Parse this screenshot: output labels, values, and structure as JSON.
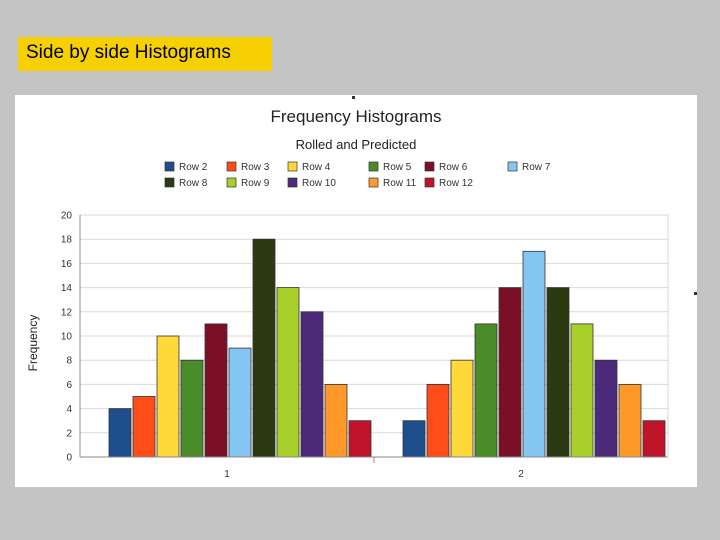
{
  "slide": {
    "title": "Side by side Histograms"
  },
  "chart_data": {
    "type": "bar",
    "title": "Frequency Histograms",
    "subtitle": "Rolled and Predicted",
    "xlabel": "",
    "ylabel": "Frequency",
    "ylim": [
      0,
      20
    ],
    "yticks": [
      "0",
      "2",
      "4",
      "6",
      "8",
      "10",
      "12",
      "14",
      "16",
      "18",
      "20"
    ],
    "grid": true,
    "legend_position": "top",
    "categories": [
      "1",
      "2"
    ],
    "series": [
      {
        "name": "Row 2",
        "color": "#1f4e8c",
        "values": [
          4,
          3
        ]
      },
      {
        "name": "Row 3",
        "color": "#ff4d1a",
        "values": [
          5,
          6
        ]
      },
      {
        "name": "Row 4",
        "color": "#ffd83a",
        "values": [
          10,
          8
        ]
      },
      {
        "name": "Row 5",
        "color": "#4a8c2a",
        "values": [
          8,
          11
        ]
      },
      {
        "name": "Row 6",
        "color": "#7a0f25",
        "values": [
          11,
          14
        ]
      },
      {
        "name": "Row 7",
        "color": "#86c6f2",
        "values": [
          9,
          17
        ]
      },
      {
        "name": "Row 8",
        "color": "#2c3a12",
        "values": [
          18,
          14
        ]
      },
      {
        "name": "Row 9",
        "color": "#a8cf2a",
        "values": [
          14,
          11
        ]
      },
      {
        "name": "Row 10",
        "color": "#4b2a7a",
        "values": [
          12,
          8
        ]
      },
      {
        "name": "Row 11",
        "color": "#ff9a2a",
        "values": [
          6,
          6
        ]
      },
      {
        "name": "Row 12",
        "color": "#c0142a",
        "values": [
          3,
          3
        ]
      }
    ]
  }
}
